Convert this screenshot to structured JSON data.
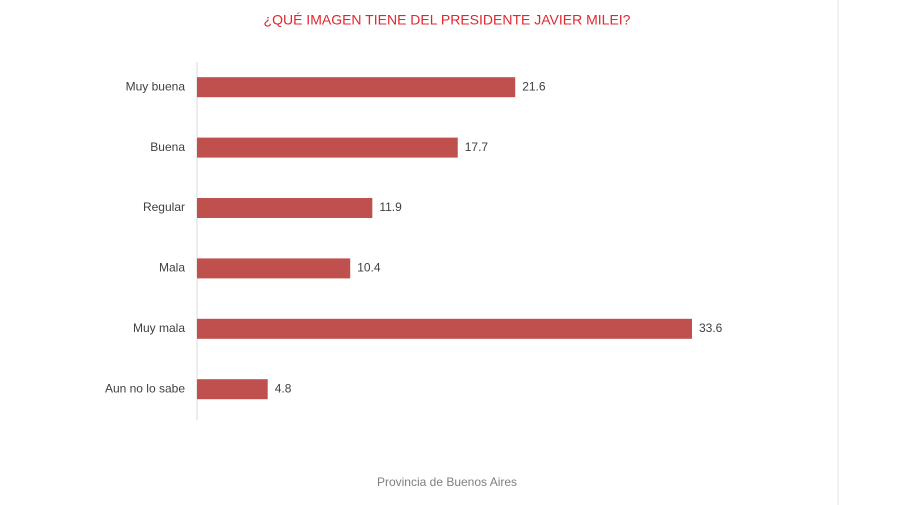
{
  "chart_data": {
    "type": "bar",
    "orientation": "horizontal",
    "title": "¿QUÉ IMAGEN TIENE DEL PRESIDENTE JAVIER MILEI?",
    "categories": [
      "Muy buena",
      "Buena",
      "Regular",
      "Mala",
      "Muy mala",
      "Aun no lo sabe"
    ],
    "values": [
      21.6,
      17.7,
      11.9,
      10.4,
      33.6,
      4.8
    ],
    "color": "#c0504d",
    "caption": "Provincia de Buenos Aires"
  }
}
